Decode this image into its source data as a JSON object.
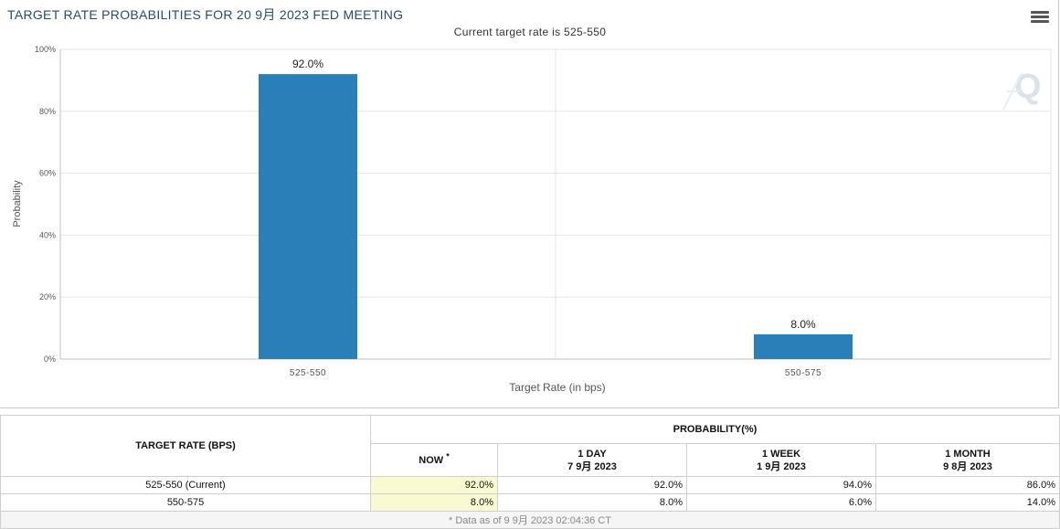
{
  "header": {
    "title": "TARGET RATE PROBABILITIES FOR 20 9月 2023 FED MEETING",
    "subtitle": "Current target rate is 525-550"
  },
  "chart_data": {
    "type": "bar",
    "categories": [
      "525-550",
      "550-575"
    ],
    "values": [
      92.0,
      8.0
    ],
    "value_labels": [
      "92.0%",
      "8.0%"
    ],
    "xlabel": "Target Rate (in bps)",
    "ylabel": "Probability",
    "ylim": [
      0,
      100
    ],
    "yticks": [
      "0%",
      "20%",
      "40%",
      "60%",
      "80%",
      "100%"
    ],
    "grid": true,
    "bar_color": "#2b7fb8"
  },
  "table": {
    "col_rate": "TARGET RATE (BPS)",
    "col_prob": "PROBABILITY(%)",
    "now_label": "NOW",
    "now_mark": "*",
    "day_label": "1 DAY",
    "day_date": "7 9月 2023",
    "week_label": "1 WEEK",
    "week_date": "1 9月 2023",
    "month_label": "1 MONTH",
    "month_date": "9 8月 2023",
    "rows": [
      {
        "rate": "525-550 (Current)",
        "now": "92.0%",
        "day": "92.0%",
        "week": "94.0%",
        "month": "86.0%"
      },
      {
        "rate": "550-575",
        "now": "8.0%",
        "day": "8.0%",
        "week": "6.0%",
        "month": "14.0%"
      }
    ],
    "footnote": "* Data as of 9 9月 2023 02:04:36 CT"
  }
}
